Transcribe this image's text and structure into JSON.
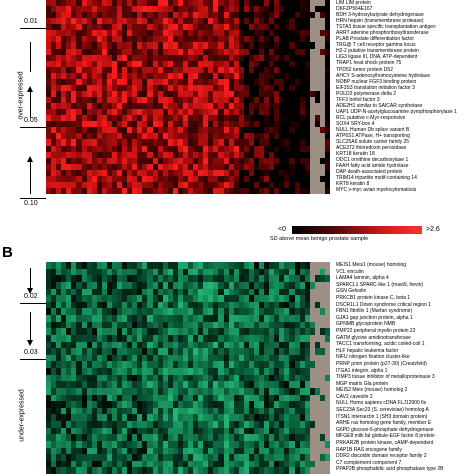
{
  "panel_a": {
    "letter": "",
    "pvalues": [
      "0.01",
      "0.05",
      "0.10"
    ],
    "side_label": "over-expressed",
    "genes": [
      "LIM LIM protein",
      "DKFZP564E167",
      "BDH 3-hydroxybutyrate dehydrogenase",
      "HRN hepsin (transmembrane protease)",
      "TSTA3 tissue specific transplantation antigen",
      "ARRT adenine phosphoribosyltransferase",
      "PLAB Prostate differentiation factor",
      "TRG@ T cell receptor gamma locus",
      "H2-2 putative transmembrane protein",
      "LIG3 ligase III, DNA, ATP-dependent",
      "TRAP1 heat shock protein 75",
      "TPD52 tumor protein D52",
      "AHCY S-adenosylhomocysteine hydrolase",
      "NOBP nuclear FGF3 binding protein",
      "EIF3S3 translation initiation factor 3",
      "POLD2 polymerase delta 2",
      "TFF3 trefoil factor 3",
      "ADE2H1 similar to SAICAR synthetase",
      "UAP1 UDP-N-acetylglucosamine pyrophosphorylase 1",
      "RCL putative c-Myc-responsive",
      "SOX4 SRY-box 4",
      "NULL Human Db splice variant B",
      "ATP6S1 ATPase, H+ transporting",
      "SLC25A6 solute carrier family 25",
      "ACE372 thioredoxin peroxidase",
      "KRT18 keratin 18",
      "ODC1 ornithine decarboxylase 1",
      "FAAH fatty acid amide hydrolase",
      "DAP death-associated protein",
      "TRIM14 tripartite motif-containing 14",
      "KRT8 keratin 8",
      "MYC v-myc avian myelocytomatosis"
    ]
  },
  "colorbar": {
    "low_label": "<0",
    "high_label": ">2.6",
    "title": "SD above mean benign prostate sample"
  },
  "panel_b": {
    "letter": "B",
    "pvalues": [
      "0.02",
      "0.03"
    ],
    "side_label": "under-expressed",
    "genes": [
      "MEIS1 Meis1 (mouse) homolog",
      "VCL vinculin",
      "LAMA4 laminin, alpha 4",
      "SPARCL1 SPARC-like 1 (mast9, hevin)",
      "GSN Gelsolin",
      "PRKCB1 protein kinase C, beta 1",
      "DSCR1L1 Down syndrome critical region 1",
      "FBN1 fibrillin 1 (Marfan syndrome)",
      "GJA1 gap junction protein, alpha 1",
      "GPNMB glycoprotein NMB",
      "PMP22 peripheral myelin protein 22",
      "GATM glycine amidinotransferase",
      "TACC1 transforming, acidic coiled-coil 1",
      "HLF hepatic leukemia factor",
      "NIFU nitrogen fixation cluster-like",
      "PRNP prion protein (p27-30) (Creutzfeld)",
      "ITGA1 integrin, alpha 1",
      "TIMP3 tissue inhibitor of metalloproteinase 3",
      "MGP matrix Gla protein",
      "MEIS2 Meis (mouse) homolog 2",
      "CAV2 caveolin 2",
      "NULL Homo sapiens cDNA FLJ12900 fis",
      "SEC23A Sec23 (S. cerevisiae) homolog A",
      "ITSN1 intersectin 1 (SH3 domain protein)",
      "ARHE ras homolog gene family, member E",
      "G6PD glucose-6-phosphate dehydrogenase",
      "MFGE8 milk fat globule-EGF factor 8 protein",
      "PRKAR2B protein kinase, cAMP-dependent",
      "RAP1B RAS oncogene family",
      "DDR2 discoidin domain receptor family 2",
      "C7 complement component 7",
      "PPAP2B phosphatidic acid phosphatase type 2B"
    ]
  }
}
